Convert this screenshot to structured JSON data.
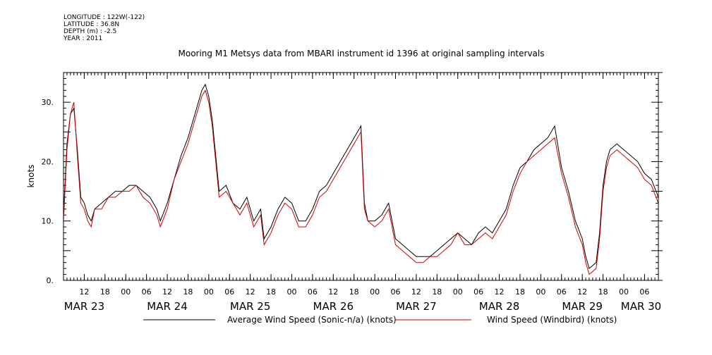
{
  "metadata": [
    "LONGITUDE : 122W(-122)",
    "LATITUDE : 36.8N",
    "DEPTH (m) : -2.5",
    "YEAR : 2011"
  ],
  "chart_data": {
    "type": "line",
    "title": "Mooring M1 Metsys data from MBARI instrument id 1396 at original sampling intervals",
    "ylabel": "knots",
    "xlabel": "",
    "xlim": [
      6,
      178
    ],
    "ylim": [
      0,
      35
    ],
    "y_ticks": [
      0,
      10,
      20,
      30
    ],
    "y_tick_labels": [
      "0.",
      "10.",
      "20.",
      "30."
    ],
    "hour_ticks": [
      {
        "x": 12,
        "label": "12"
      },
      {
        "x": 18,
        "label": "18"
      },
      {
        "x": 24,
        "label": "00"
      },
      {
        "x": 30,
        "label": "06"
      },
      {
        "x": 36,
        "label": "12"
      },
      {
        "x": 42,
        "label": "18"
      },
      {
        "x": 48,
        "label": "00"
      },
      {
        "x": 54,
        "label": "06"
      },
      {
        "x": 60,
        "label": "12"
      },
      {
        "x": 66,
        "label": "18"
      },
      {
        "x": 72,
        "label": "00"
      },
      {
        "x": 78,
        "label": "06"
      },
      {
        "x": 84,
        "label": "12"
      },
      {
        "x": 90,
        "label": "18"
      },
      {
        "x": 96,
        "label": "00"
      },
      {
        "x": 102,
        "label": "06"
      },
      {
        "x": 108,
        "label": "12"
      },
      {
        "x": 114,
        "label": "18"
      },
      {
        "x": 120,
        "label": "00"
      },
      {
        "x": 126,
        "label": "06"
      },
      {
        "x": 132,
        "label": "12"
      },
      {
        "x": 138,
        "label": "18"
      },
      {
        "x": 144,
        "label": "00"
      },
      {
        "x": 150,
        "label": "06"
      },
      {
        "x": 156,
        "label": "12"
      },
      {
        "x": 162,
        "label": "18"
      },
      {
        "x": 168,
        "label": "00"
      },
      {
        "x": 174,
        "label": "06"
      }
    ],
    "day_labels": [
      {
        "x": 12,
        "label": "MAR 23"
      },
      {
        "x": 36,
        "label": "MAR 24"
      },
      {
        "x": 60,
        "label": "MAR 25"
      },
      {
        "x": 84,
        "label": "MAR 26"
      },
      {
        "x": 108,
        "label": "MAR 27"
      },
      {
        "x": 132,
        "label": "MAR 28"
      },
      {
        "x": 156,
        "label": "MAR 29"
      },
      {
        "x": 173,
        "label": "MAR 30"
      }
    ],
    "series": [
      {
        "name": "Average Wind Speed (Sonic-n/a) (knots)",
        "color": "#000000",
        "x": [
          6,
          7,
          8,
          9,
          10,
          11,
          12,
          13,
          14,
          15,
          17,
          19,
          21,
          23,
          25,
          27,
          29,
          31,
          33,
          34,
          36,
          38,
          40,
          42,
          44,
          46,
          47,
          48,
          49,
          51,
          53,
          55,
          57,
          59,
          61,
          63,
          64,
          66,
          68,
          70,
          72,
          74,
          76,
          78,
          80,
          82,
          84,
          86,
          88,
          90,
          91,
          92,
          93,
          94,
          96,
          98,
          100,
          102,
          104,
          106,
          108,
          110,
          112,
          114,
          116,
          118,
          120,
          122,
          124,
          126,
          128,
          130,
          132,
          134,
          136,
          138,
          140,
          142,
          144,
          146,
          148,
          150,
          152,
          154,
          156,
          157,
          158,
          160,
          161,
          162,
          163,
          164,
          166,
          168,
          170,
          172,
          174,
          176,
          178
        ],
        "y": [
          11,
          23,
          28,
          29,
          22,
          14,
          13,
          11,
          10,
          12,
          13,
          14,
          15,
          15,
          16,
          16,
          15,
          14,
          12,
          10,
          13,
          17,
          21,
          24,
          28,
          32,
          33,
          31,
          27,
          15,
          16,
          13,
          12,
          14,
          10,
          12,
          7,
          9,
          12,
          14,
          13,
          10,
          10,
          12,
          15,
          16,
          18,
          20,
          22,
          24,
          25,
          26,
          13,
          10,
          10,
          11,
          13,
          7,
          6,
          5,
          4,
          4,
          4,
          5,
          6,
          7,
          8,
          7,
          6,
          8,
          9,
          8,
          10,
          12,
          16,
          19,
          20,
          22,
          23,
          24,
          26,
          19,
          15,
          10,
          7,
          4,
          2,
          3,
          8,
          16,
          20,
          22,
          23,
          22,
          21,
          20,
          18,
          17,
          14
        ]
      },
      {
        "name": "Wind Speed (Windbird) (knots)",
        "color": "#cc0000",
        "x": [
          6,
          7,
          8,
          9,
          10,
          11,
          12,
          13,
          14,
          15,
          17,
          19,
          21,
          23,
          25,
          27,
          29,
          31,
          33,
          34,
          36,
          38,
          40,
          42,
          44,
          46,
          47,
          48,
          49,
          51,
          53,
          55,
          57,
          59,
          61,
          63,
          64,
          66,
          68,
          70,
          72,
          74,
          76,
          78,
          80,
          82,
          84,
          86,
          88,
          90,
          91,
          92,
          93,
          94,
          96,
          98,
          100,
          102,
          104,
          106,
          108,
          110,
          112,
          114,
          116,
          118,
          120,
          122,
          124,
          126,
          128,
          130,
          132,
          134,
          136,
          138,
          140,
          142,
          144,
          146,
          148,
          150,
          152,
          154,
          156,
          157,
          158,
          160,
          161,
          162,
          163,
          164,
          166,
          168,
          170,
          172,
          174,
          176,
          178
        ],
        "y": [
          10,
          22,
          28,
          30,
          21,
          13,
          12,
          10,
          9,
          12,
          12,
          14,
          14,
          15,
          15,
          16,
          14,
          13,
          11,
          9,
          12,
          17,
          20,
          23,
          27,
          31,
          32,
          30,
          26,
          14,
          15,
          13,
          11,
          13,
          9,
          11,
          6,
          8,
          11,
          13,
          12,
          9,
          9,
          11,
          14,
          15,
          17,
          19,
          21,
          23,
          24,
          25,
          12,
          10,
          9,
          10,
          12,
          6,
          5,
          4,
          3,
          3,
          4,
          4,
          5,
          6,
          8,
          6,
          6,
          7,
          8,
          7,
          9,
          11,
          15,
          18,
          20,
          21,
          22,
          23,
          24,
          18,
          14,
          9,
          6,
          3,
          1,
          2,
          7,
          15,
          19,
          21,
          22,
          21,
          20,
          19,
          17,
          16,
          13
        ]
      }
    ],
    "legend": {
      "position": "bottom"
    }
  }
}
